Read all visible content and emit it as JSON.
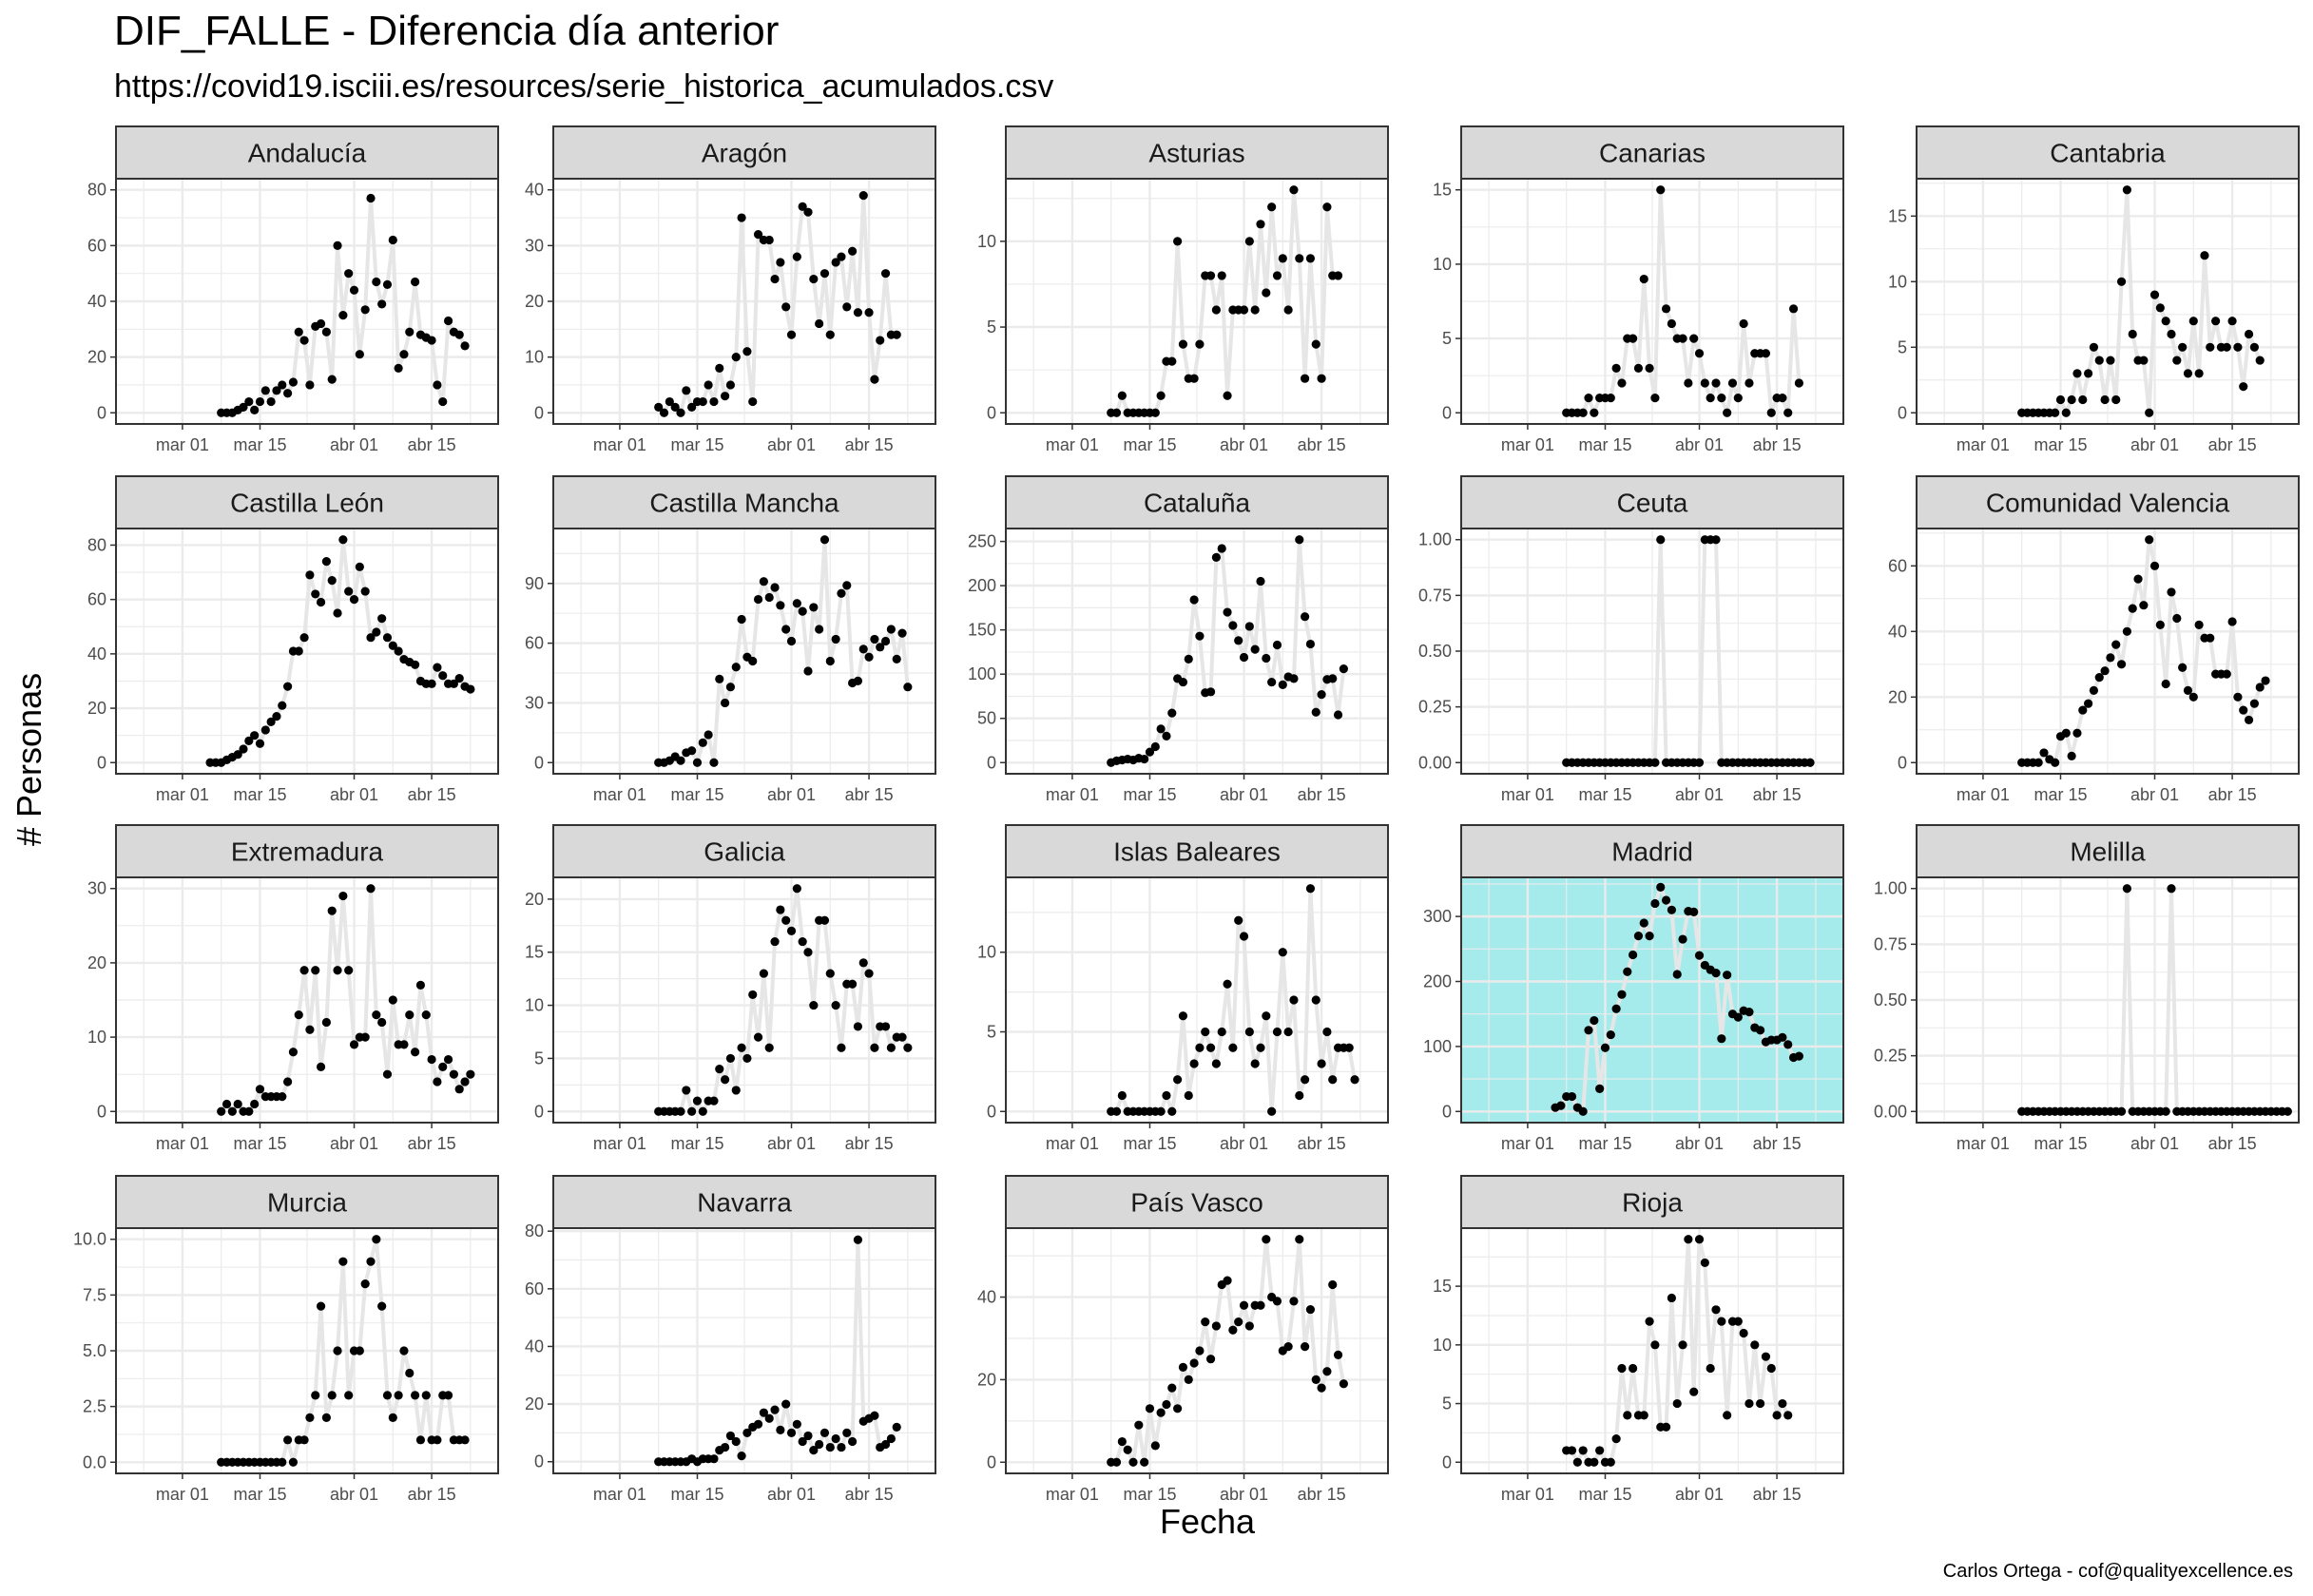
{
  "title": "DIF_FALLE - Diferencia día anterior",
  "subtitle": "https://covid19.isciii.es/resources/serie_historica_acumulados.csv",
  "ylabel": "# Personas",
  "xlabel": "Fecha",
  "caption": "Carlos Ortega - cof@qualityexcellence.es",
  "colors": {
    "highlight_panel": "#A6EBEB",
    "strip": "#D9D9D9",
    "line": "#E6E6E6",
    "point": "#000000",
    "grid": "#EBEBEB"
  },
  "chart_data": {
    "type": "line",
    "facets_layout": "4x5",
    "x_unit": "days since mar 01",
    "x_ticks": [
      {
        "value": 0,
        "label": "mar 01"
      },
      {
        "value": 14,
        "label": "mar 15"
      },
      {
        "value": 31,
        "label": "abr 01"
      },
      {
        "value": 45,
        "label": "abr 15"
      }
    ],
    "xlim": [
      -12,
      57
    ],
    "grid": true,
    "panels": [
      {
        "name": "Andalucía",
        "x0": 7,
        "xlim": [
          -12,
          57
        ],
        "ylim": [
          -4,
          84
        ],
        "yticks": [
          0,
          20,
          40,
          60,
          80
        ],
        "highlight": false,
        "values": [
          0,
          0,
          0,
          1,
          2,
          4,
          1,
          4,
          8,
          4,
          8,
          10,
          7,
          11,
          29,
          26,
          10,
          31,
          32,
          29,
          12,
          60,
          35,
          50,
          44,
          21,
          37,
          77,
          47,
          39,
          46,
          62,
          16,
          21,
          29,
          47,
          28,
          27,
          26,
          10,
          4,
          33,
          29,
          28,
          24
        ]
      },
      {
        "name": "Aragón",
        "x0": 7,
        "xlim": [
          -12,
          57
        ],
        "ylim": [
          -2,
          42
        ],
        "yticks": [
          0,
          10,
          20,
          30,
          40
        ],
        "highlight": false,
        "values": [
          1,
          0,
          2,
          1,
          0,
          4,
          1,
          2,
          2,
          5,
          2,
          8,
          3,
          5,
          10,
          35,
          11,
          2,
          32,
          31,
          31,
          24,
          27,
          19,
          14,
          28,
          37,
          36,
          24,
          16,
          25,
          14,
          27,
          28,
          19,
          29,
          18,
          39,
          18,
          6,
          13,
          25,
          14,
          14
        ]
      },
      {
        "name": "Asturias",
        "x0": 7,
        "xlim": [
          -12,
          57
        ],
        "ylim": [
          -0.65,
          13.65
        ],
        "yticks": [
          0,
          5,
          10
        ],
        "highlight": false,
        "values": [
          0,
          0,
          1,
          0,
          0,
          0,
          0,
          0,
          0,
          1,
          3,
          3,
          10,
          4,
          2,
          2,
          4,
          8,
          8,
          6,
          8,
          1,
          6,
          6,
          6,
          10,
          6,
          11,
          7,
          12,
          8,
          9,
          6,
          13,
          9,
          2,
          9,
          4,
          2,
          12,
          8,
          8
        ]
      },
      {
        "name": "Canarias",
        "x0": 7,
        "xlim": [
          -12,
          57
        ],
        "ylim": [
          -0.75,
          15.75
        ],
        "yticks": [
          0,
          5,
          10,
          15
        ],
        "highlight": false,
        "values": [
          0,
          0,
          0,
          0,
          1,
          0,
          1,
          1,
          1,
          3,
          2,
          5,
          5,
          3,
          9,
          3,
          1,
          15,
          7,
          6,
          5,
          5,
          2,
          5,
          4,
          2,
          1,
          2,
          1,
          0,
          2,
          1,
          6,
          2,
          4,
          4,
          4,
          0,
          1,
          1,
          0,
          7,
          2
        ]
      },
      {
        "name": "Cantabria",
        "x0": 7,
        "xlim": [
          -12,
          57
        ],
        "ylim": [
          -0.85,
          17.85
        ],
        "yticks": [
          0,
          5,
          10,
          15
        ],
        "highlight": false,
        "values": [
          0,
          0,
          0,
          0,
          0,
          0,
          0,
          1,
          0,
          1,
          3,
          1,
          3,
          5,
          4,
          1,
          4,
          1,
          10,
          17,
          6,
          4,
          4,
          0,
          9,
          8,
          7,
          6,
          4,
          5,
          3,
          7,
          3,
          12,
          5,
          7,
          5,
          5,
          7,
          5,
          2,
          6,
          5,
          4
        ]
      },
      {
        "name": "Castilla León",
        "x0": 5,
        "xlim": [
          -12,
          57
        ],
        "ylim": [
          -4.1,
          86.1
        ],
        "yticks": [
          0,
          20,
          40,
          60,
          80
        ],
        "highlight": false,
        "values": [
          0,
          0,
          0,
          1,
          2,
          3,
          5,
          8,
          10,
          7,
          12,
          15,
          17,
          21,
          28,
          41,
          41,
          46,
          69,
          62,
          59,
          74,
          67,
          55,
          82,
          63,
          60,
          72,
          63,
          46,
          48,
          53,
          46,
          43,
          41,
          38,
          37,
          36,
          30,
          29,
          29,
          35,
          32,
          29,
          29,
          31,
          28,
          27
        ]
      },
      {
        "name": "Castilla Mancha",
        "x0": 7,
        "xlim": [
          -12,
          57
        ],
        "ylim": [
          -5.6,
          117.6
        ],
        "yticks": [
          0,
          30,
          60,
          90
        ],
        "highlight": false,
        "values": [
          0,
          0,
          1,
          3,
          1,
          5,
          6,
          0,
          10,
          14,
          0,
          42,
          30,
          38,
          48,
          72,
          53,
          51,
          82,
          91,
          83,
          88,
          79,
          67,
          61,
          80,
          76,
          46,
          78,
          67,
          112,
          51,
          62,
          85,
          89,
          40,
          41,
          57,
          53,
          62,
          58,
          61,
          67,
          52,
          65,
          38
        ]
      },
      {
        "name": "Cataluña",
        "x0": 7,
        "xlim": [
          -12,
          57
        ],
        "ylim": [
          -12.6,
          264.6
        ],
        "yticks": [
          0,
          50,
          100,
          150,
          200,
          250
        ],
        "highlight": false,
        "values": [
          0,
          2,
          3,
          4,
          3,
          5,
          4,
          12,
          18,
          38,
          30,
          56,
          95,
          91,
          117,
          184,
          143,
          79,
          80,
          232,
          242,
          170,
          155,
          138,
          119,
          154,
          128,
          205,
          118,
          91,
          133,
          88,
          97,
          95,
          252,
          165,
          134,
          57,
          77,
          94,
          95,
          54,
          106
        ]
      },
      {
        "name": "Ceuta",
        "x0": 7,
        "xlim": [
          -12,
          57
        ],
        "ylim": [
          -0.05,
          1.05
        ],
        "yticks": [
          0,
          0.25,
          0.5,
          0.75,
          1
        ],
        "ytick_labels": [
          "0.00",
          "0.25",
          "0.50",
          "0.75",
          "1.00"
        ],
        "highlight": false,
        "values": [
          0,
          0,
          0,
          0,
          0,
          0,
          0,
          0,
          0,
          0,
          0,
          0,
          0,
          0,
          0,
          0,
          0,
          1,
          0,
          0,
          0,
          0,
          0,
          0,
          0,
          1,
          1,
          1,
          0,
          0,
          0,
          0,
          0,
          0,
          0,
          0,
          0,
          0,
          0,
          0,
          0,
          0,
          0,
          0,
          0
        ]
      },
      {
        "name": "Comunidad Valencia",
        "x0": 7,
        "xlim": [
          -12,
          57
        ],
        "ylim": [
          -3.4,
          71.4
        ],
        "yticks": [
          0,
          20,
          40,
          60
        ],
        "highlight": false,
        "values": [
          0,
          0,
          0,
          0,
          3,
          1,
          0,
          8,
          9,
          2,
          9,
          16,
          18,
          22,
          26,
          28,
          32,
          36,
          30,
          40,
          47,
          56,
          48,
          68,
          60,
          42,
          24,
          52,
          44,
          29,
          22,
          20,
          42,
          38,
          38,
          27,
          27,
          27,
          43,
          20,
          16,
          13,
          18,
          23,
          25
        ]
      },
      {
        "name": "Extremadura",
        "x0": 7,
        "xlim": [
          -12,
          57
        ],
        "ylim": [
          -1.5,
          31.5
        ],
        "yticks": [
          0,
          10,
          20,
          30
        ],
        "highlight": false,
        "values": [
          0,
          1,
          0,
          1,
          0,
          0,
          1,
          3,
          2,
          2,
          2,
          2,
          4,
          8,
          13,
          19,
          11,
          19,
          6,
          12,
          27,
          19,
          29,
          19,
          9,
          10,
          10,
          30,
          13,
          12,
          5,
          15,
          9,
          9,
          13,
          8,
          17,
          13,
          7,
          4,
          6,
          7,
          5,
          3,
          4,
          5
        ]
      },
      {
        "name": "Galicia",
        "x0": 7,
        "xlim": [
          -12,
          57
        ],
        "ylim": [
          -1.05,
          22.05
        ],
        "yticks": [
          0,
          5,
          10,
          15,
          20
        ],
        "highlight": false,
        "values": [
          0,
          0,
          0,
          0,
          0,
          2,
          0,
          1,
          0,
          1,
          1,
          4,
          3,
          5,
          2,
          6,
          5,
          11,
          7,
          13,
          6,
          16,
          19,
          18,
          17,
          21,
          16,
          15,
          10,
          18,
          18,
          13,
          10,
          6,
          12,
          12,
          8,
          14,
          13,
          6,
          8,
          8,
          6,
          7,
          7,
          6
        ]
      },
      {
        "name": "Islas Baleares",
        "x0": 7,
        "xlim": [
          -12,
          57
        ],
        "ylim": [
          -0.7,
          14.7
        ],
        "yticks": [
          0,
          5,
          10
        ],
        "highlight": false,
        "values": [
          0,
          0,
          1,
          0,
          0,
          0,
          0,
          0,
          0,
          0,
          1,
          0,
          2,
          6,
          1,
          3,
          4,
          5,
          4,
          3,
          5,
          8,
          4,
          12,
          11,
          5,
          3,
          4,
          6,
          0,
          5,
          10,
          5,
          7,
          1,
          2,
          14,
          7,
          3,
          5,
          2,
          4,
          4,
          4,
          2
        ]
      },
      {
        "name": "Madrid",
        "x0": 5,
        "xlim": [
          -12,
          57
        ],
        "ylim": [
          -17.15,
          360.15
        ],
        "yticks": [
          0,
          100,
          200,
          300
        ],
        "highlight": true,
        "values": [
          6,
          9,
          23,
          23,
          6,
          0,
          125,
          140,
          35,
          98,
          118,
          158,
          180,
          215,
          241,
          270,
          290,
          270,
          320,
          345,
          325,
          310,
          211,
          265,
          308,
          307,
          240,
          225,
          218,
          213,
          112,
          210,
          150,
          145,
          155,
          153,
          129,
          125,
          107,
          110,
          110,
          114,
          103,
          83,
          85
        ]
      },
      {
        "name": "Melilla",
        "x0": 7,
        "xlim": [
          -12,
          57
        ],
        "ylim": [
          -0.05,
          1.05
        ],
        "yticks": [
          0,
          0.25,
          0.5,
          0.75,
          1
        ],
        "ytick_labels": [
          "0.00",
          "0.25",
          "0.50",
          "0.75",
          "1.00"
        ],
        "highlight": false,
        "values": [
          0,
          0,
          0,
          0,
          0,
          0,
          0,
          0,
          0,
          0,
          0,
          0,
          0,
          0,
          0,
          0,
          0,
          0,
          0,
          1,
          0,
          0,
          0,
          0,
          0,
          0,
          0,
          1,
          0,
          0,
          0,
          0,
          0,
          0,
          0,
          0,
          0,
          0,
          0,
          0,
          0,
          0,
          0,
          0,
          0,
          0,
          0,
          0,
          0
        ]
      },
      {
        "name": "Murcia",
        "x0": 7,
        "xlim": [
          -12,
          57
        ],
        "ylim": [
          -0.5,
          10.5
        ],
        "yticks": [
          0,
          2.5,
          5,
          7.5,
          10
        ],
        "ytick_labels": [
          "0.0",
          "2.5",
          "5.0",
          "7.5",
          "10.0"
        ],
        "highlight": false,
        "values": [
          0,
          0,
          0,
          0,
          0,
          0,
          0,
          0,
          0,
          0,
          0,
          0,
          1,
          0,
          1,
          1,
          2,
          3,
          7,
          2,
          3,
          5,
          9,
          3,
          5,
          5,
          8,
          9,
          10,
          7,
          3,
          2,
          3,
          5,
          4,
          3,
          1,
          3,
          1,
          1,
          3,
          3,
          1,
          1,
          1
        ]
      },
      {
        "name": "Navarra",
        "x0": 7,
        "xlim": [
          -12,
          57
        ],
        "ylim": [
          -4.05,
          81.05
        ],
        "yticks": [
          0,
          20,
          40,
          60,
          80
        ],
        "highlight": false,
        "values": [
          0,
          0,
          0,
          0,
          0,
          0,
          1,
          0,
          1,
          1,
          1,
          4,
          5,
          9,
          7,
          2,
          10,
          12,
          13,
          17,
          15,
          18,
          11,
          20,
          10,
          13,
          7,
          9,
          4,
          6,
          10,
          5,
          8,
          5,
          10,
          7,
          77,
          14,
          15,
          16,
          5,
          6,
          8,
          12
        ]
      },
      {
        "name": "País Vasco",
        "x0": 7,
        "xlim": [
          -12,
          57
        ],
        "ylim": [
          -2.7,
          56.7
        ],
        "yticks": [
          0,
          20,
          40
        ],
        "highlight": false,
        "values": [
          0,
          0,
          5,
          3,
          0,
          9,
          0,
          13,
          4,
          12,
          14,
          18,
          13,
          23,
          20,
          24,
          27,
          34,
          25,
          33,
          43,
          44,
          32,
          34,
          38,
          33,
          38,
          38,
          54,
          40,
          39,
          27,
          28,
          39,
          54,
          28,
          37,
          20,
          18,
          22,
          43,
          26,
          19
        ]
      },
      {
        "name": "Rioja",
        "x0": 7,
        "xlim": [
          -12,
          57
        ],
        "ylim": [
          -0.95,
          19.95
        ],
        "yticks": [
          0,
          5,
          10,
          15
        ],
        "highlight": false,
        "values": [
          1,
          1,
          0,
          1,
          0,
          0,
          1,
          0,
          0,
          2,
          8,
          4,
          8,
          4,
          4,
          12,
          10,
          3,
          3,
          14,
          5,
          10,
          19,
          6,
          19,
          17,
          8,
          13,
          12,
          4,
          12,
          12,
          11,
          5,
          10,
          5,
          9,
          8,
          4,
          5,
          4
        ]
      }
    ]
  }
}
